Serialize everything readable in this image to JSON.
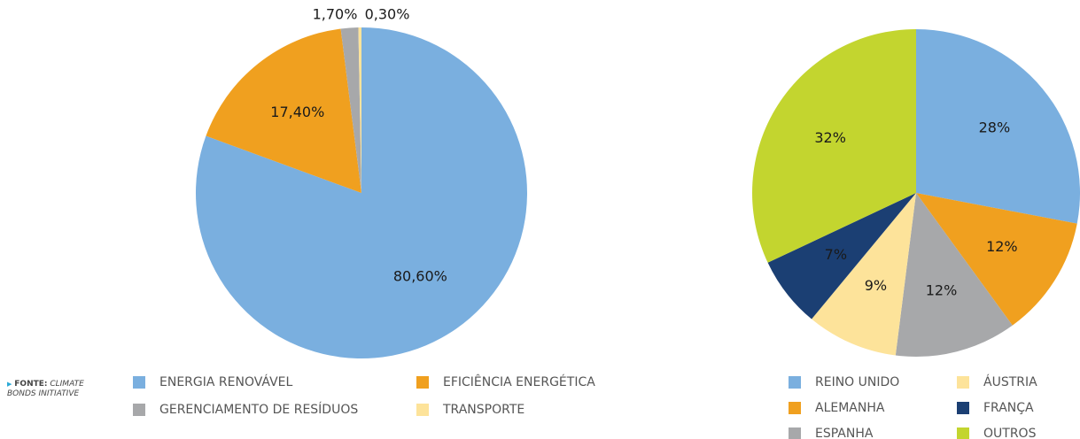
{
  "chart_data": [
    {
      "type": "pie",
      "categories": [
        "ENERGIA RENOVÁVEL",
        "EFICIÊNCIA ENERGÉTICA",
        "GERENCIAMENTO DE RESÍDUOS",
        "TRANSPORTE"
      ],
      "values": [
        80.6,
        17.4,
        1.7,
        0.3
      ],
      "value_labels": [
        "80,60%",
        "17,40%",
        "1,70%",
        "0,30%"
      ],
      "colors": [
        "#7aafdf",
        "#f0a01f",
        "#a7a8aa",
        "#fde39a"
      ]
    },
    {
      "type": "pie",
      "categories": [
        "REINO UNIDO",
        "ALEMANHA",
        "ESPANHA",
        "ÁUSTRIA",
        "FRANÇA",
        "OUTROS"
      ],
      "values": [
        28,
        12,
        12,
        9,
        7,
        32
      ],
      "value_labels": [
        "28%",
        "12%",
        "12%",
        "9%",
        "7%",
        "32%"
      ],
      "colors": [
        "#7aafdf",
        "#f0a01f",
        "#a7a8aa",
        "#fde39a",
        "#1b3f73",
        "#c3d52f"
      ]
    }
  ],
  "source": {
    "label": "FONTE:",
    "text": "CLIMATE BONDS INITIATIVE"
  }
}
